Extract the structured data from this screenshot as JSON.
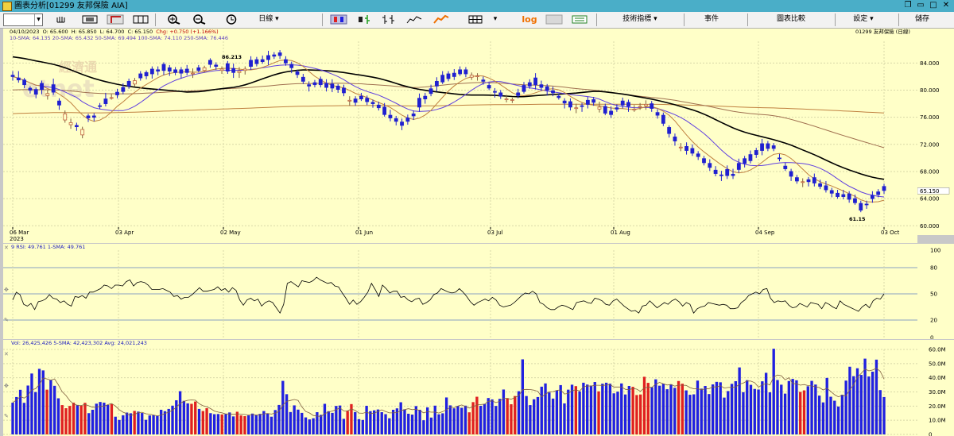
{
  "window": {
    "title": "圖表分析[01299 友邦保險 AIA]"
  },
  "toolbar": {
    "period": "日線",
    "indicators": "技術指標",
    "events": "事件",
    "compare": "圖表比較",
    "settings": "設定",
    "save": "儲存",
    "log": "log",
    "symbol_value": ""
  },
  "info": {
    "date": "04/10/2023",
    "open": "O: 65.600",
    "high": "H: 65.850",
    "low": "L: 64.700",
    "close": "C: 65.150",
    "change": "Chg: +0.750 (+1.166%)",
    "sma_line": "10-SMA: 64.135 20-SMA: 65.432 50-SMA: 69.494 100-SMA: 74.110 250-SMA: 76.446",
    "symbol_name": "01299 友邦保險 (日線)",
    "watermark": "經濟通",
    "watermark2": "etnet",
    "high_label": "86.213",
    "low_label": "61.15",
    "last_price": "65.150"
  },
  "chart_data": [
    {
      "type": "candlestick",
      "x_labels": [
        "06 Mar",
        "03 Apr",
        "02 May",
        "01 Jun",
        "03 Jul",
        "01 Aug",
        "04 Sep",
        "03 Oct"
      ],
      "year_label": "2023",
      "y_ticks": [
        "84.000",
        "80.000",
        "76.000",
        "72.000",
        "68.000",
        "64.000",
        "60.000"
      ],
      "ylim": [
        59.8,
        87.2
      ],
      "n_bars": 151,
      "closes": [
        82.0,
        81.5,
        80.8,
        80.0,
        79.4,
        80.1,
        79.5,
        79.7,
        77.8,
        76.5,
        75.2,
        74.6,
        74.2,
        75.9,
        76.0,
        77.6,
        78.0,
        78.9,
        79.3,
        79.8,
        80.6,
        81.4,
        81.8,
        82.1,
        82.4,
        82.8,
        82.9,
        82.8,
        82.6,
        82.5,
        82.6,
        82.5,
        82.9,
        83.3,
        83.8,
        83.5,
        83.1,
        82.8,
        82.6,
        82.8,
        83.1,
        83.5,
        83.9,
        84.2,
        84.5,
        85.0,
        85.1,
        84.0,
        83.3,
        82.3,
        81.3,
        80.6,
        80.8,
        80.8,
        80.4,
        80.3,
        80.1,
        79.6,
        78.5,
        78.2,
        78.7,
        78.3,
        78.0,
        77.4,
        76.4,
        75.9,
        75.4,
        74.8,
        75.4,
        76.2,
        77.5,
        78.7,
        79.5,
        80.6,
        81.2,
        81.7,
        82.0,
        82.4,
        82.4,
        82.2,
        82.1,
        81.3,
        80.3,
        79.7,
        79.1,
        78.7,
        78.6,
        79.2,
        79.8,
        80.6,
        80.8,
        80.4,
        80.0,
        79.6,
        78.9,
        78.1,
        77.5,
        77.4,
        77.6,
        77.9,
        78.2,
        77.5,
        76.6,
        76.4,
        77.2,
        77.8,
        77.6,
        77.2,
        77.6,
        77.9,
        77.3,
        76.3,
        75.1,
        73.6,
        72.5,
        71.6,
        71.1,
        70.7,
        70.2,
        69.3,
        68.6,
        67.7,
        67.4,
        67.4,
        67.4,
        68.3,
        69.2,
        69.6,
        70.5,
        71.1,
        71.4,
        71.4,
        69.9,
        68.4,
        67.3,
        66.6,
        66.5,
        66.5,
        66.3,
        65.8,
        65.3,
        64.8,
        64.3,
        64.3,
        63.9,
        63.4,
        62.3,
        63.1,
        64.0,
        64.6,
        65.2
      ],
      "open_offsets": [
        0.2,
        0.3,
        0.7,
        0.3,
        0.7,
        0.9,
        -0.3,
        1.1,
        0.6,
        -0.9,
        -0.3,
        0.2,
        -0.8,
        0.3,
        0.2,
        0.1,
        0.7,
        0.0,
        0.4,
        0.6,
        0.7,
        -0.5,
        0.6,
        0.5,
        0.7,
        0.2,
        0.9,
        0.5,
        0.4,
        0.5,
        0.5,
        -0.1,
        0.4,
        -0.4,
        0.6,
        0.2,
        -0.2,
        1.1,
        0.6,
        -0.2,
        -0.2,
        0.9,
        0.6,
        0.3,
        0.6,
        0.2,
        0.4,
        0.5,
        0.5,
        0.4,
        0.6,
        0.2,
        0.3,
        0.8,
        0.6,
        0.6,
        0.5,
        0.7,
        -0.1,
        0.5,
        0.4,
        0.5,
        0.2,
        0.4,
        1.1,
        0.4,
        0.4,
        0.5,
        0.5,
        0.3,
        1.3,
        0.4,
        0.7,
        0.7,
        1.0,
        0.7,
        0.5,
        0.6,
        0.6,
        -0.3,
        -0.1,
        0.2,
        0.4,
        0.1,
        0.5,
        -0.1,
        -0.1,
        0.4,
        0.9,
        0.5,
        1.0,
        0.4,
        0.5,
        0.3,
        0.2,
        0.3,
        0.8,
        -0.1,
        0.1,
        0.6,
        0.4,
        -0.3,
        1.0,
        0.5,
        0.2,
        0.6,
        0.6,
        -0.1,
        0.0,
        -0.2,
        0.7,
        0.4,
        1.2,
        0.9,
        0.6,
        -0.1,
        0.6,
        0.7,
        0.4,
        0.6,
        0.6,
        0.5,
        0.1,
        0.9,
        0.2,
        0.9,
        0.7,
        0.9,
        0.6,
        1.0,
        0.7,
        0.4,
        0.1,
        0.4,
        0.7,
        0.5,
        0.0,
        0.3,
        0.8,
        0.4,
        0.6,
        0.4,
        0.5,
        0.3,
        0.8,
        0.6,
        1.0,
        0.1,
        0.5,
        0.4,
        0.6
      ],
      "wick_highs": [
        0.6,
        1.0,
        0.3,
        0.3,
        0.3,
        0.4,
        0.5,
        0.9,
        0.4,
        0.5,
        0.6,
        0.4,
        0.4,
        0.3,
        0.4,
        0.4,
        0.9,
        0.5,
        0.5,
        0.6,
        0.4,
        0.4,
        0.4,
        0.3,
        0.4,
        0.5,
        0.3,
        0.4,
        0.4,
        0.4,
        0.6,
        0.7,
        0.4,
        0.3,
        0.3,
        0.4,
        0.4,
        0.4,
        0.7,
        0.6,
        0.4,
        0.6,
        0.4,
        0.6,
        0.7,
        0.4,
        0.4,
        0.5,
        0.4,
        0.3,
        0.5,
        0.5,
        0.4,
        0.4,
        0.6,
        0.7,
        0.3,
        0.5,
        0.6,
        0.4,
        0.5,
        0.4,
        0.4,
        0.5,
        0.6,
        0.8,
        0.4,
        0.5,
        0.5,
        0.5,
        0.7,
        0.5,
        0.6,
        0.6,
        0.6,
        0.4,
        0.6,
        0.5,
        0.4,
        0.4,
        0.4,
        0.5,
        0.4,
        0.5,
        0.4,
        0.6,
        0.3,
        0.6,
        0.5,
        0.5,
        0.7,
        0.6,
        0.4,
        0.6,
        0.4,
        0.4,
        0.5,
        0.6,
        0.4,
        0.5,
        0.4,
        0.8,
        0.4,
        0.7,
        0.5,
        0.5,
        0.4,
        0.6,
        0.5,
        0.6,
        0.4,
        0.5,
        0.4,
        0.3,
        0.5,
        0.6,
        0.6,
        0.6,
        0.4,
        0.4,
        0.6,
        0.6,
        0.6,
        0.6,
        0.8,
        0.7,
        0.4,
        0.6,
        0.4,
        0.7,
        0.4,
        0.4,
        0.6,
        0.5,
        0.4,
        0.4,
        0.5,
        0.4,
        0.6,
        0.6,
        0.7,
        0.4,
        0.5,
        0.7,
        0.4,
        0.6,
        0.4,
        0.5,
        0.6,
        0.4,
        0.4
      ],
      "wick_lows": [
        0.6,
        0.4,
        0.5,
        0.5,
        0.6,
        0.7,
        0.6,
        0.4,
        0.7,
        0.4,
        0.6,
        0.6,
        0.5,
        0.6,
        0.6,
        0.4,
        0.4,
        0.3,
        0.5,
        0.4,
        0.4,
        0.4,
        0.4,
        0.5,
        0.7,
        0.6,
        0.7,
        0.7,
        0.4,
        0.8,
        0.4,
        0.6,
        0.3,
        0.3,
        0.5,
        0.5,
        0.5,
        0.4,
        0.8,
        0.8,
        0.6,
        0.5,
        0.4,
        0.3,
        0.8,
        0.4,
        0.5,
        0.4,
        0.8,
        0.5,
        0.4,
        0.8,
        0.4,
        0.4,
        0.6,
        0.6,
        0.5,
        0.5,
        0.7,
        0.5,
        0.3,
        0.5,
        0.6,
        0.4,
        0.3,
        0.5,
        0.6,
        0.7,
        0.5,
        0.6,
        0.7,
        0.7,
        0.4,
        0.8,
        0.3,
        0.4,
        0.5,
        0.3,
        0.5,
        0.4,
        0.6,
        0.5,
        0.3,
        0.8,
        0.4,
        0.4,
        0.4,
        0.4,
        0.3,
        0.4,
        0.7,
        0.5,
        0.8,
        0.5,
        0.3,
        0.8,
        0.5,
        0.7,
        0.8,
        0.6,
        0.5,
        0.5,
        0.3,
        0.5,
        0.4,
        0.5,
        0.8,
        0.3,
        0.5,
        0.6,
        0.5,
        0.5,
        0.4,
        0.6,
        0.7,
        0.5,
        0.6,
        0.4,
        0.5,
        0.4,
        0.5,
        0.4,
        0.8,
        0.5,
        0.5,
        0.5,
        0.6,
        0.4,
        0.5,
        0.7,
        0.4,
        0.4,
        0.4,
        0.3,
        0.7,
        0.4,
        0.8,
        0.7,
        0.5,
        0.4,
        0.4,
        0.6,
        0.3,
        0.4,
        0.5,
        0.3,
        0.3,
        0.6,
        0.6,
        0.4,
        0.5
      ],
      "ma_colors": {
        "10": "#c08040",
        "20": "#6040e0",
        "50": "#000000",
        "100": "#a07050",
        "250": "#c08040"
      },
      "ma_50": [
        85.0,
        84.5,
        84.0
      ],
      "ma_100_start": 80.0,
      "ma_250_start": 76.5
    },
    {
      "type": "line",
      "label": "9 RSI: 49.761 1-SMA: 49.761",
      "y_ticks": [
        "100",
        "80",
        "50",
        "20",
        "0"
      ],
      "ylim": [
        0,
        100
      ],
      "series": [
        {
          "values": [
            43,
            52,
            49,
            38,
            36,
            39,
            32,
            41,
            42,
            44,
            49,
            45,
            44,
            40,
            42,
            38,
            36,
            47,
            46,
            48,
            45,
            52,
            52,
            54,
            56,
            60,
            59,
            56,
            60,
            60,
            59,
            64,
            66,
            59,
            63,
            64,
            63,
            60,
            55,
            55,
            55,
            56,
            54,
            52,
            47,
            48,
            44,
            46,
            46,
            49,
            53,
            57,
            53,
            53,
            54,
            55,
            58,
            54,
            56,
            52,
            57,
            54,
            43,
            37,
            43,
            45,
            42,
            44,
            36,
            40,
            42,
            40,
            34,
            28,
            38,
            62,
            64,
            61,
            58,
            65,
            64,
            63,
            65,
            69,
            66,
            64,
            62,
            63,
            59,
            58,
            51,
            45,
            38,
            43,
            38,
            41,
            46,
            52,
            62,
            55,
            47,
            60,
            56,
            51,
            53,
            53,
            46,
            47,
            43,
            41,
            44,
            45,
            38,
            40,
            43,
            49,
            51,
            56,
            54,
            52,
            51,
            52,
            56,
            52,
            47,
            41,
            37,
            40,
            42,
            44,
            42,
            46,
            43,
            37,
            35,
            36,
            37,
            40,
            44,
            48,
            51,
            50,
            53,
            50,
            40,
            38,
            34,
            32,
            32,
            35,
            37,
            36,
            34,
            32,
            40,
            41,
            42,
            40,
            39,
            45,
            44,
            42,
            38,
            37,
            42,
            44,
            40,
            36,
            33,
            30,
            31,
            28,
            36,
            37,
            42,
            38,
            34,
            37,
            40,
            38,
            42,
            44,
            41,
            36,
            40,
            38,
            28,
            33,
            35,
            36,
            40,
            39,
            38,
            37,
            38,
            37,
            33,
            33,
            34,
            40,
            43,
            48,
            50,
            52,
            50,
            55,
            56,
            45,
            40,
            42,
            41,
            42,
            37,
            34,
            35,
            39,
            37,
            35,
            40,
            39,
            38,
            33,
            40,
            38,
            35,
            33,
            42,
            38,
            36,
            34,
            32,
            30,
            35,
            38,
            34,
            42,
            45,
            44,
            50
          ]
        }
      ]
    },
    {
      "type": "bar",
      "label": "Vol: 26,425,426 5-SMA: 42,423,302 Avg: 24,021,243",
      "y_ticks": [
        "60.0M",
        "50.0M",
        "40.0M",
        "30.0M",
        "20.0M",
        "10.0M",
        "0"
      ],
      "ylim": [
        0,
        60
      ],
      "colors": {
        "up": "#e02020",
        "down": "#2020e0"
      },
      "values": [
        22.4,
        26.4,
        31.5,
        22.3,
        34.5,
        43.0,
        29.9,
        46.3,
        45.2,
        31.6,
        38.5,
        34.3,
        25.5,
        20.7,
        18.5,
        20.1,
        22.4,
        20.8,
        20.3,
        22.3,
        15.0,
        17.4,
        21.7,
        22.9,
        22.4,
        20.8,
        21.4,
        12.5,
        10.2,
        13.5,
        15.4,
        14.9,
        16.6,
        16.1,
        15.1,
        10.3,
        13.4,
        13.6,
        13.1,
        17.4,
        16.4,
        18.0,
        20.3,
        24.1,
        30.5,
        23.7,
        21.9,
        21.6,
        23.2,
        18.0,
        16.5,
        18.5,
        15.0,
        14.3,
        14.4,
        14.1,
        14.3,
        15.5,
        12.7,
        16.0,
        13.4,
        12.9,
        13.4,
        14.7,
        13.6,
        14.5,
        16.5,
        14.6,
        12.5,
        17.2,
        20.8,
        37.8,
        28.4,
        15.8,
        20.5,
        17.5,
        15.2,
        12.0,
        10.6,
        11.4,
        15.7,
        13.8,
        21.6,
        16.4,
        15.2,
        20.1,
        20.4,
        11.0,
        16.5,
        21.4,
        15.8,
        10.8,
        10.2,
        20.2,
        16.4,
        17.0,
        17.6,
        15.7,
        14.3,
        11.4,
        17.4,
        18.4,
        22.7,
        17.7,
        14.6,
        14.0,
        20.0,
        17.4,
        10.0,
        19.1,
        11.9,
        20.3,
        14.2,
        14.9,
        26.1,
        20.5,
        18.4,
        20.1,
        18.8,
        20.3,
        15.6,
        22.8,
        26.6,
        20.2,
        21.5,
        25.7,
        24.7,
        20.1,
        25.1,
        31.7,
        25.6,
        21.3,
        27.1,
        30.5,
        53.0,
        27.1,
        20.7,
        24.8,
        26.4,
        33.7,
        36.0,
        29.6,
        25.3,
        31.1,
        34.8,
        21.9,
        31.6,
        35.1,
        34.1,
        30.3,
        36.5,
        35.2,
        34.5,
        37.0,
        30.4,
        35.8,
        36.5,
        35.8,
        29.0,
        30.2,
        36.0,
        28.2,
        34.2,
        33.6,
        27.8,
        28.2,
        40.7,
        36.4,
        33.3,
        38.9,
        34.4,
        35.8,
        31.9,
        35.4,
        32.9,
        37.7,
        35.8,
        31.1,
        28.0,
        28.3,
        38.0,
        32.3,
        34.2,
        28.5,
        35.3,
        37.1,
        36.8,
        26.0,
        30.6,
        35.7,
        37.6,
        47.3,
        29.8,
        38.3,
        35.0,
        32.1,
        31.7,
        37.5,
        43.5,
        29.7,
        60.5,
        38.4,
        35.1,
        28.8,
        37.7,
        39.2,
        38.2,
        30.0,
        31.1,
        34.0,
        37.8,
        35.2,
        27.4,
        22.6,
        39.9,
        26.6,
        23.8,
        19.7,
        28.0,
        38.0,
        47.8,
        41.1,
        46.7,
        42.0,
        53.5,
        40.9,
        44.3,
        52.8,
        31.3,
        26.4
      ]
    }
  ]
}
